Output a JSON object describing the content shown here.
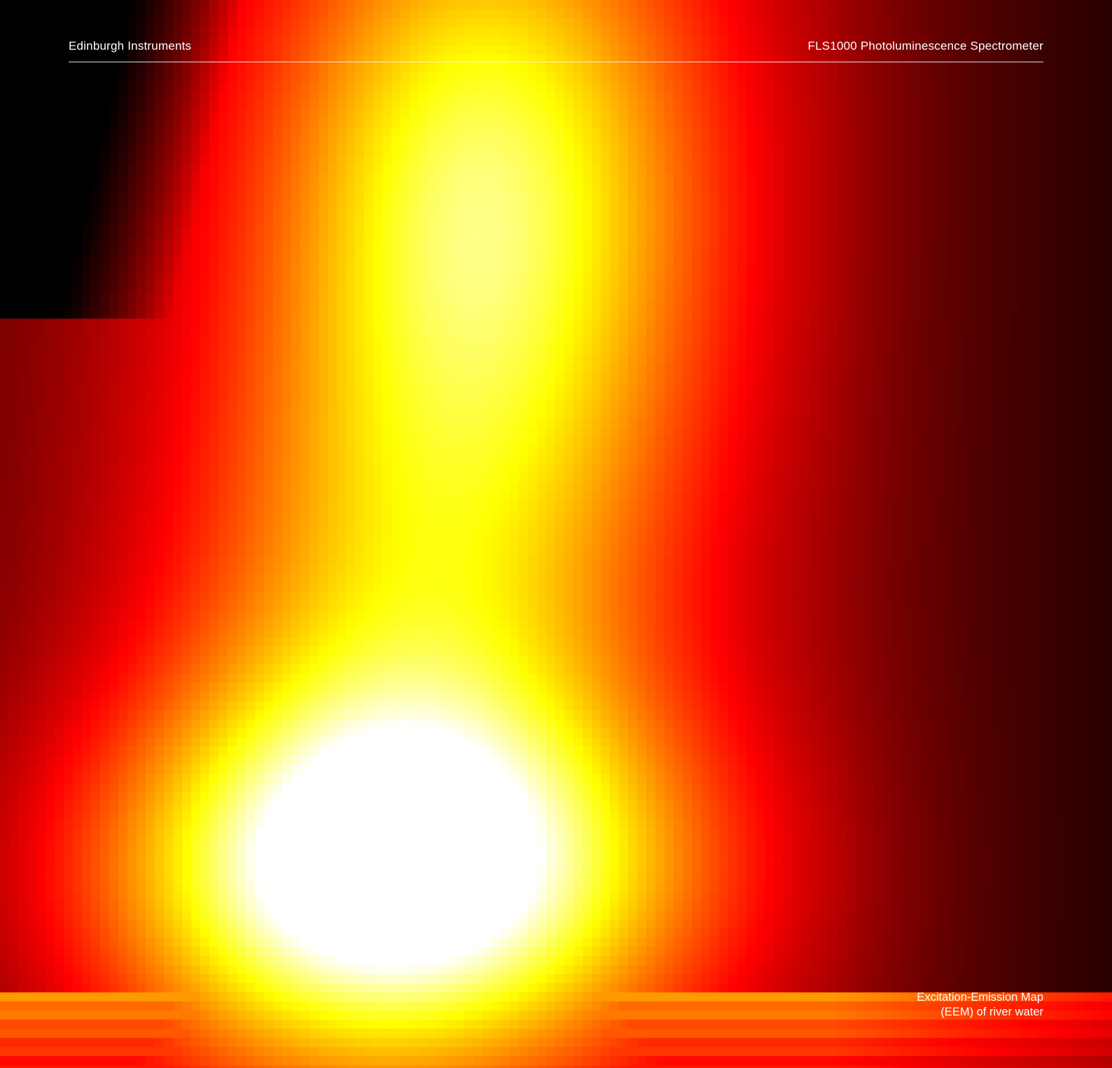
{
  "header": {
    "company": "Edinburgh Instruments",
    "product": "FLS1000 Photoluminescence Spectrometer"
  },
  "caption": {
    "line1": "Excitation-Emission Map",
    "line2": "(EEM) of river water"
  },
  "colormap": {
    "name": "hot",
    "stops": [
      "#000000",
      "#ff0000",
      "#ff7a00",
      "#ffff00",
      "#ffffff"
    ]
  }
}
